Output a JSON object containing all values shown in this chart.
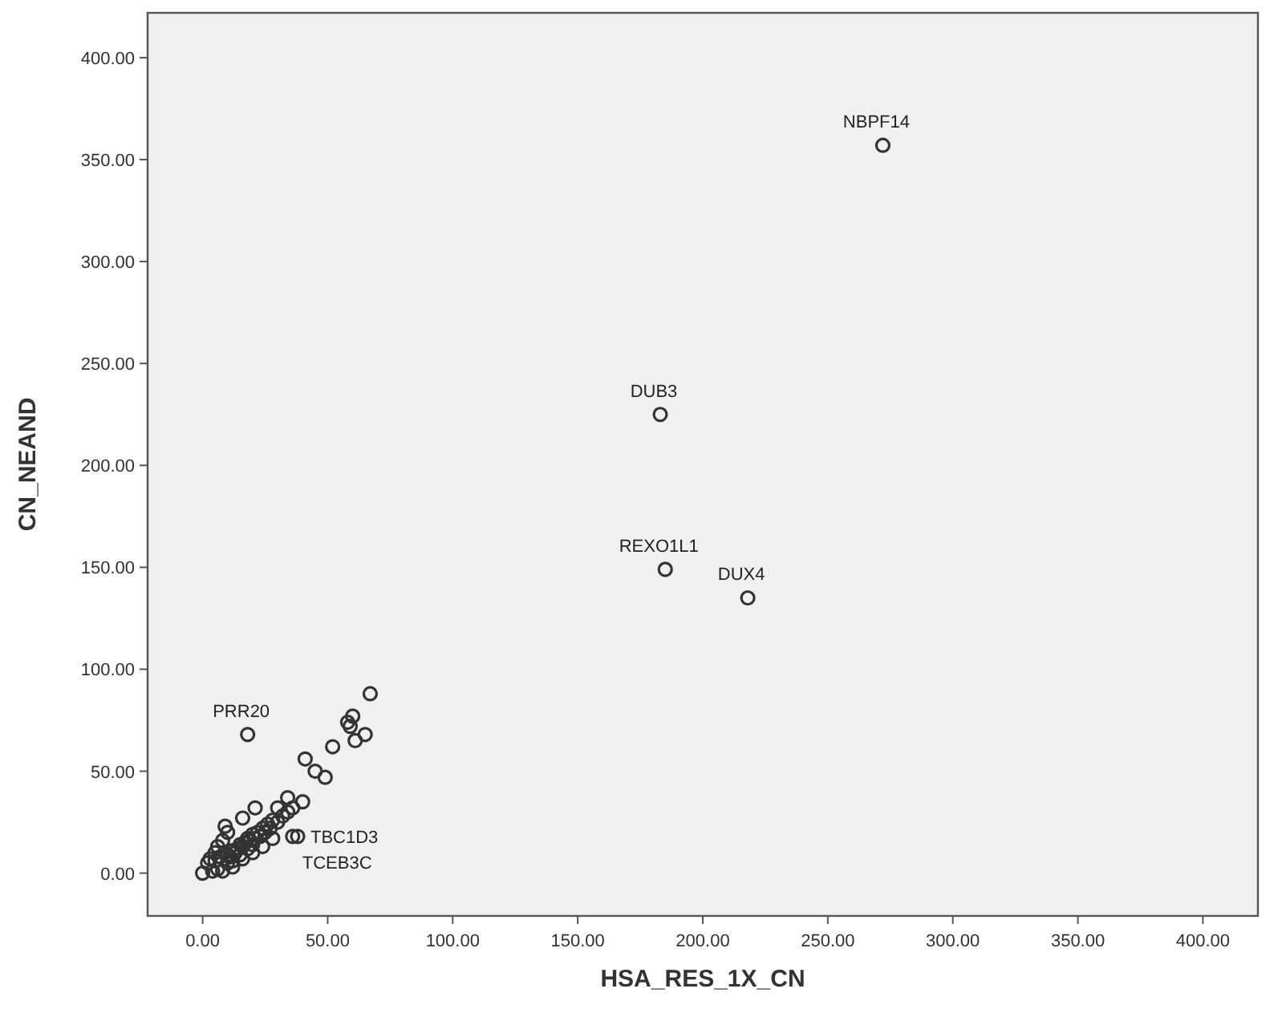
{
  "chart_data": {
    "type": "scatter",
    "xlabel": "HSA_RES_1X_CN",
    "ylabel": "CN_NEAND",
    "marker": "circle",
    "grid": false,
    "xlim": [
      -22,
      422
    ],
    "ylim": [
      -21,
      422
    ],
    "xticks": [
      {
        "value": 0,
        "label": "0.00"
      },
      {
        "value": 50,
        "label": "50.00"
      },
      {
        "value": 100,
        "label": "100.00"
      },
      {
        "value": 150,
        "label": "150.00"
      },
      {
        "value": 200,
        "label": "200.00"
      },
      {
        "value": 250,
        "label": "250.00"
      },
      {
        "value": 300,
        "label": "300.00"
      },
      {
        "value": 350,
        "label": "350.00"
      },
      {
        "value": 400,
        "label": "400.00"
      }
    ],
    "yticks": [
      {
        "value": 0,
        "label": "0.00"
      },
      {
        "value": 50,
        "label": "50.00"
      },
      {
        "value": 100,
        "label": "100.00"
      },
      {
        "value": 150,
        "label": "150.00"
      },
      {
        "value": 200,
        "label": "200.00"
      },
      {
        "value": 250,
        "label": "250.00"
      },
      {
        "value": 300,
        "label": "300.00"
      },
      {
        "value": 350,
        "label": "350.00"
      },
      {
        "value": 400,
        "label": "400.00"
      }
    ],
    "series": [
      {
        "color": "#333333",
        "x": [
          272,
          183,
          185,
          218,
          67,
          18,
          60,
          58,
          59,
          61,
          65,
          52,
          41,
          49,
          45,
          40,
          36,
          38,
          9,
          34,
          30,
          21,
          16,
          0,
          4,
          5,
          6,
          7,
          9,
          10,
          10,
          11,
          12,
          12,
          13,
          14,
          15,
          15,
          16,
          17,
          18,
          18,
          19,
          20,
          20,
          21,
          22,
          23,
          24,
          25,
          26,
          27,
          28,
          30,
          3,
          5,
          6,
          8,
          10,
          8,
          12,
          16,
          20,
          24,
          28,
          32,
          34,
          36,
          2
        ],
        "values": [
          357,
          225,
          149,
          135,
          88,
          68,
          77,
          74,
          72,
          65,
          68,
          62,
          56,
          47,
          50,
          35,
          18,
          18,
          23,
          37,
          32,
          32,
          27,
          0,
          1,
          6,
          2,
          8,
          10,
          5,
          9,
          8,
          11,
          6,
          10,
          12,
          9,
          14,
          13,
          15,
          12,
          17,
          16,
          14,
          19,
          17,
          20,
          18,
          22,
          20,
          24,
          22,
          26,
          25,
          7,
          10,
          13,
          16,
          20,
          1,
          3,
          7,
          10,
          13,
          17,
          28,
          30,
          32,
          5
        ]
      }
    ],
    "annotations": [
      {
        "text": "NBPF14",
        "x": 272,
        "y": 357
      },
      {
        "text": "DUB3",
        "x": 183,
        "y": 225
      },
      {
        "text": "REXO1L1",
        "x": 185,
        "y": 149
      },
      {
        "text": "DUX4",
        "x": 218,
        "y": 135
      },
      {
        "text": "PRR20",
        "x": 18,
        "y": 68
      },
      {
        "text": "TCEB3C",
        "x": 36,
        "y": 18
      },
      {
        "text": "TBC1D3",
        "x": 38,
        "y": 18
      }
    ]
  }
}
